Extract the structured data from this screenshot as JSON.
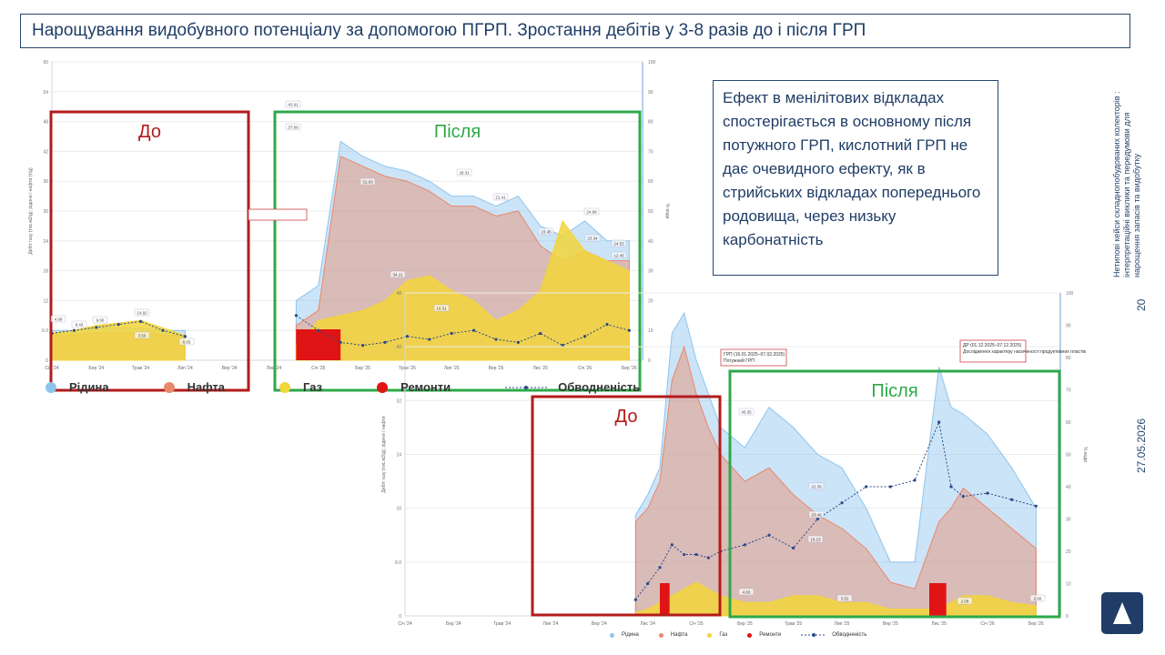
{
  "title": "Нарощування видобувного потенціалу за допомогою ПГРП. Зростання дебітів у 3-8 разів до і після ГРП",
  "callout": "Ефект в менілітових відкладах спостерігається в основному після потужного ГРП, кислотний ГРП не дає очевидного ефекту, як в стрийських відкладах попереднього родовища, через низьку карбонатність",
  "side_text": "Нетипові кейси складнопобудованих колекторів : інтерпретаційні виклики та передумови для нарощення запасів та видобутку",
  "page_number": "20",
  "date": "27.05.2026",
  "colors": {
    "liquid": "#8ec4ee",
    "oil": "#e8896a",
    "gas": "#f2d53a",
    "repair": "#e01414",
    "water": "#2a4a8a",
    "before": "#b31b1b",
    "after": "#2ea84a"
  },
  "legend": [
    {
      "name": "Рідина",
      "color": "#8ec4ee"
    },
    {
      "name": "Нафта",
      "color": "#e8896a"
    },
    {
      "name": "Газ",
      "color": "#f2d53a"
    },
    {
      "name": "Ремонти",
      "color": "#e01414"
    },
    {
      "name": "Обводненість",
      "color": "#2a4a8a"
    }
  ],
  "chart_data": [
    {
      "type": "area",
      "ylabel": "Дебіт газу (тис.м3/д); рідини / нафти (т/д)",
      "y2label": "% води",
      "ylim": [
        0,
        60
      ],
      "y_ticks": [
        "0",
        "6.0",
        "12",
        "18",
        "24",
        "30",
        "36",
        "42",
        "48",
        "54",
        "60"
      ],
      "y2lim": [
        0,
        100
      ],
      "y2_ticks": [
        "0",
        "10",
        "20",
        "30",
        "40",
        "50",
        "60",
        "70",
        "80",
        "90",
        "100"
      ],
      "x_ticks": [
        "Січ '24",
        "Бер '24",
        "Трав '24",
        "Лип '24",
        "Вер '24",
        "Лис '24",
        "Січ '25",
        "Бер '25",
        "Трав '25",
        "Лип '25",
        "Вер '25",
        "Лис '25",
        "Січ '26",
        "Бер '26"
      ],
      "x": [
        0,
        1,
        2,
        3,
        4,
        5,
        6,
        6.5,
        7,
        8,
        9,
        10,
        11,
        12,
        13,
        14,
        15,
        16,
        17,
        18,
        19,
        20,
        21,
        22,
        23,
        24,
        25,
        26
      ],
      "series": [
        {
          "name": "Рідина",
          "values": [
            6,
            6,
            6.5,
            6.5,
            6.5,
            6,
            6,
            null,
            null,
            null,
            null,
            null,
            12,
            15,
            44,
            41,
            39,
            38,
            36,
            33,
            33,
            31,
            33,
            27,
            25,
            28,
            24,
            24
          ]
        },
        {
          "name": "Нафта",
          "values": [
            5,
            5,
            5.5,
            5.5,
            5.5,
            5,
            5,
            null,
            null,
            null,
            null,
            null,
            7,
            10,
            41,
            39,
            37,
            36,
            34,
            31,
            31,
            29,
            30,
            23,
            20,
            22,
            20,
            20
          ]
        },
        {
          "name": "Газ",
          "values": [
            5.5,
            6,
            7,
            7.5,
            8,
            6.5,
            5,
            null,
            null,
            null,
            null,
            null,
            3,
            8,
            9,
            10,
            12,
            16,
            17,
            14,
            12,
            8,
            10,
            14,
            28,
            22,
            20,
            18
          ]
        },
        {
          "name": "Обводненість",
          "values": [
            9,
            10,
            11,
            12,
            13,
            10,
            8,
            null,
            null,
            null,
            null,
            null,
            15,
            10,
            6,
            5,
            6,
            8,
            7,
            9,
            10,
            7,
            6,
            9,
            5,
            8,
            12,
            10
          ]
        }
      ],
      "repairs": [
        {
          "from": 11,
          "to": 13
        }
      ],
      "annotations": [
        "Потужний ГРП"
      ],
      "point_labels": [
        "4.99",
        "8.43",
        "9.60",
        "14.92",
        "3.50",
        "6.65",
        "43.91",
        "37.69",
        "31.63",
        "28.31",
        "21.41",
        "23.45",
        "24.98",
        "24.53",
        "34.11",
        "10.31",
        "23.34",
        "12.45"
      ],
      "before_label": "До",
      "after_label": "Після"
    },
    {
      "type": "area",
      "ylabel": "Дебіт газу (тис.м3/д); рідини / нафти",
      "y2label": "% води",
      "ylim": [
        0,
        48
      ],
      "y_ticks": [
        "0",
        "8.0",
        "16",
        "24",
        "32",
        "40",
        "48"
      ],
      "y2lim": [
        0,
        100
      ],
      "y2_ticks": [
        "0",
        "10",
        "20",
        "30",
        "40",
        "50",
        "60",
        "70",
        "80",
        "90",
        "100"
      ],
      "x_ticks": [
        "Січ '24",
        "Бер '24",
        "Трав '24",
        "Лип '24",
        "Вер '24",
        "Лис '24",
        "Січ '25",
        "Бер '25",
        "Трав '25",
        "Лип '25",
        "Вер '25",
        "Лис '25",
        "Січ '26",
        "Бер '26"
      ],
      "x": [
        9.5,
        10,
        10.5,
        11,
        11.5,
        12,
        12.5,
        13,
        14,
        15,
        16,
        17,
        18,
        19,
        20,
        21,
        22,
        22.5,
        23,
        24,
        25,
        26
      ],
      "series": [
        {
          "name": "Рідина",
          "values": [
            15,
            18,
            22,
            42,
            45,
            38,
            33,
            28,
            25,
            31,
            28,
            24,
            22,
            16,
            8,
            8,
            37,
            31,
            30,
            27,
            22,
            16
          ]
        },
        {
          "name": "Нафта",
          "values": [
            14,
            16,
            20,
            35,
            40,
            33,
            28,
            24,
            20,
            22,
            18,
            15,
            13,
            10,
            5,
            4,
            14,
            16,
            19,
            16,
            13,
            10
          ]
        },
        {
          "name": "Газ",
          "values": [
            0.5,
            1,
            2,
            3,
            4,
            5,
            4,
            3,
            2,
            2,
            3,
            3,
            2,
            2,
            1,
            1,
            1,
            2,
            3,
            3,
            2,
            1.5
          ]
        },
        {
          "name": "Обводненість",
          "values": [
            5,
            10,
            15,
            22,
            19,
            19,
            18,
            20,
            22,
            25,
            21,
            30,
            35,
            40,
            40,
            42,
            60,
            40,
            37,
            38,
            36,
            34
          ]
        }
      ],
      "repairs": [
        {
          "from": 10.5,
          "to": 10.9
        },
        {
          "from": 21.6,
          "to": 22.3
        }
      ],
      "annotations": [
        "ГРП (16.01.2025–07.02.2025)",
        "Потужний ГРП",
        "ДР (01.12.2025–07.12.2025)",
        "Дослідження характеру насиченості продуктивних пластів"
      ],
      "point_labels": [
        "40.35",
        "4.83",
        "23.48",
        "3.52",
        "22.39",
        "18.23",
        "2.08",
        "2.66"
      ],
      "before_label": "До",
      "after_label": "Після"
    }
  ]
}
